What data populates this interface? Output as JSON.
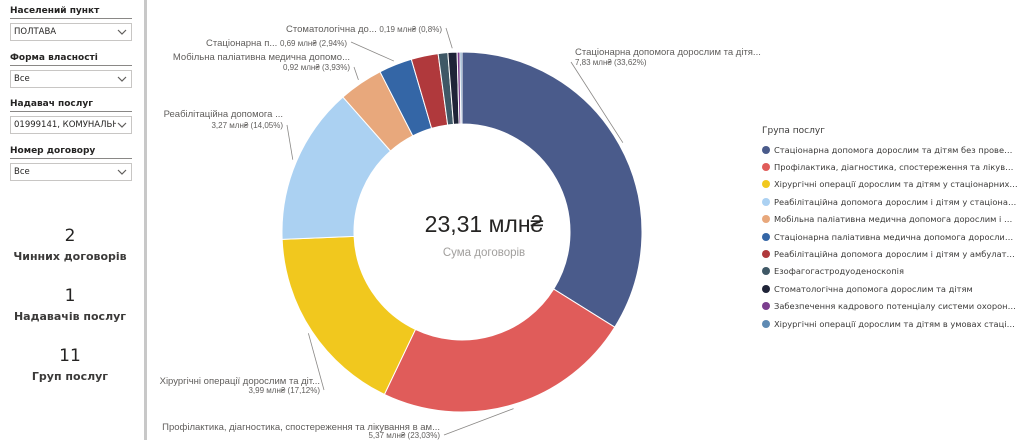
{
  "filters": [
    {
      "label": "Населений пункт",
      "value": "ПОЛТАВА"
    },
    {
      "label": "Форма власності",
      "value": "Все"
    },
    {
      "label": "Надавач послуг",
      "value": "01999141, КОМУНАЛЬН..."
    },
    {
      "label": "Номер договору",
      "value": "Все"
    }
  ],
  "kpis": [
    {
      "value": "2",
      "label": "Чинних договорів"
    },
    {
      "value": "1",
      "label": "Надавачів послуг"
    },
    {
      "value": "11",
      "label": "Груп послуг"
    }
  ],
  "center": {
    "value": "23,31 млн₴",
    "label": "Сума договорів"
  },
  "legend": {
    "title": "Група послуг"
  },
  "chart_data": {
    "type": "pie",
    "donut": true,
    "legend_position": "right",
    "total_label": "23,31 млн₴",
    "total_caption": "Сума договорів",
    "slices": [
      {
        "name": "Стаціонарна допомога дорослим та дітям без проведення ...",
        "value": 7.83,
        "percent": 33.62,
        "value_label": "7,83 млн₴ (33,62%)",
        "short_label": "Стаціонарна допомога дорослим та дітя...",
        "color": "#4a5b8b"
      },
      {
        "name": "Профілактика, діагностика, спостереження та лікування в а...",
        "value": 5.37,
        "percent": 23.03,
        "value_label": "5,37 млн₴ (23,03%)",
        "short_label": "Профілактика, діагностика, спостереження та лікування в ам...",
        "color": "#e05c5a"
      },
      {
        "name": "Хірургічні операції дорослим та дітям у стаціонарних умовах",
        "value": 3.99,
        "percent": 17.12,
        "value_label": "3,99 млн₴ (17,12%)",
        "short_label": "Хірургічні операції дорослим та діт...",
        "color": "#f1c81e"
      },
      {
        "name": "Реабілітаційна допомога дорослим і дітям у стаціонарних у...",
        "value": 3.27,
        "percent": 14.05,
        "value_label": "3,27 млн₴ (14,05%)",
        "short_label": "Реабілітаційна допомога ...",
        "color": "#abd1f2"
      },
      {
        "name": "Мобільна паліативна медична допомога дорослим і дітям",
        "value": 0.92,
        "percent": 3.93,
        "value_label": "0,92 млн₴ (3,93%)",
        "short_label": "Мобільна паліативна медична допомо...",
        "color": "#e8a87c"
      },
      {
        "name": "Стаціонарна паліативна медична допомога дорослим і дітям",
        "value": 0.69,
        "percent": 2.94,
        "value_label": "0,69 млн₴ (2,94%)",
        "short_label": "Стаціонарна п...",
        "color": "#3466a6"
      },
      {
        "name": "Реабілітаційна допомога дорослим і дітям у амбулаторних ...",
        "value": 0.56,
        "percent": 2.4,
        "value_label": "",
        "short_label": "",
        "color": "#b0393c"
      },
      {
        "name": "Езофагогастродуоденоскопія",
        "value": 0.2,
        "percent": 0.84,
        "value_label": "",
        "short_label": "",
        "color": "#3f5866"
      },
      {
        "name": "Стоматологічна допомога дорослим та дітям",
        "value": 0.19,
        "percent": 0.8,
        "value_label": "0,19 млн₴ (0,8%)",
        "short_label": "Стоматологічна до...",
        "color": "#1f2438"
      },
      {
        "name": "Забезпечення кадрового потенціалу системи охорони здо...",
        "value": 0.06,
        "percent": 0.25,
        "value_label": "",
        "short_label": "",
        "color": "#7b3e8e"
      },
      {
        "name": "Хірургічні операції дорослим та дітям в умовах стаціонару ...",
        "value": 0.04,
        "percent": 0.15,
        "value_label": "",
        "short_label": "",
        "color": "#5e8ab3"
      }
    ]
  }
}
